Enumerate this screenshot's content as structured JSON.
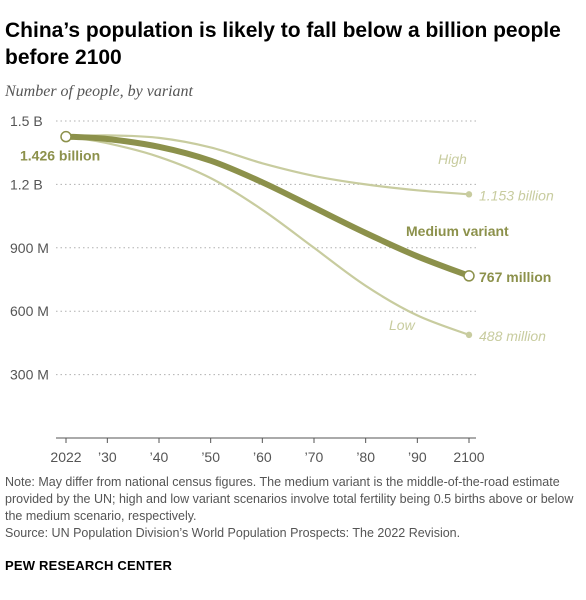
{
  "title": "China’s population is likely to fall below a billion people before 2100",
  "subtitle": "Number of people, by variant",
  "chart_data": {
    "type": "line",
    "xlim": [
      2022,
      2100
    ],
    "ylim": [
      0,
      1500000000
    ],
    "x_ticks": [
      2022,
      2030,
      2040,
      2050,
      2060,
      2070,
      2080,
      2090,
      2100
    ],
    "x_tick_labels": [
      "2022",
      "’30",
      "’40",
      "’50",
      "’60",
      "’70",
      "’80",
      "’90",
      "2100"
    ],
    "y_ticks": [
      300000000,
      600000000,
      900000000,
      1200000000,
      1500000000
    ],
    "y_tick_labels": [
      "300 M",
      "600 M",
      "900 M",
      "1.2 B",
      "1.5 B"
    ],
    "grid": true,
    "series": [
      {
        "name": "High",
        "x": [
          2022,
          2030,
          2040,
          2050,
          2060,
          2070,
          2080,
          2090,
          2100
        ],
        "y": [
          1426000000,
          1432000000,
          1420000000,
          1375000000,
          1300000000,
          1240000000,
          1200000000,
          1172000000,
          1153000000
        ],
        "color": "#c8cc9f",
        "end_label": "1.153 billion"
      },
      {
        "name": "Medium variant",
        "x": [
          2022,
          2030,
          2040,
          2050,
          2060,
          2070,
          2080,
          2090,
          2100
        ],
        "y": [
          1426000000,
          1415000000,
          1378000000,
          1312000000,
          1210000000,
          1090000000,
          970000000,
          860000000,
          767000000
        ],
        "color": "#8c914b",
        "end_label": "767 million"
      },
      {
        "name": "Low",
        "x": [
          2022,
          2030,
          2040,
          2050,
          2060,
          2070,
          2080,
          2090,
          2100
        ],
        "y": [
          1426000000,
          1395000000,
          1330000000,
          1230000000,
          1080000000,
          900000000,
          720000000,
          580000000,
          488000000
        ],
        "color": "#c8cc9f",
        "end_label": "488 million"
      }
    ],
    "start_label": "1.426 billion",
    "start_value": 1426000000
  },
  "note_lines": [
    "Note: May differ from national census figures. The medium variant is the middle-of-the-road estimate provided by the UN; high and low variant scenarios involve total fertility being 0.5 births above or below the medium scenario, respectively.",
    "Source: UN Population Division’s World Population Prospects: The 2022 Revision."
  ],
  "brand": "PEW RESEARCH CENTER",
  "colors": {
    "medium": "#8c914b",
    "light": "#c8cc9f",
    "axis": "#555555",
    "grid": "#b0b0b0",
    "tick_text": "#555555"
  }
}
